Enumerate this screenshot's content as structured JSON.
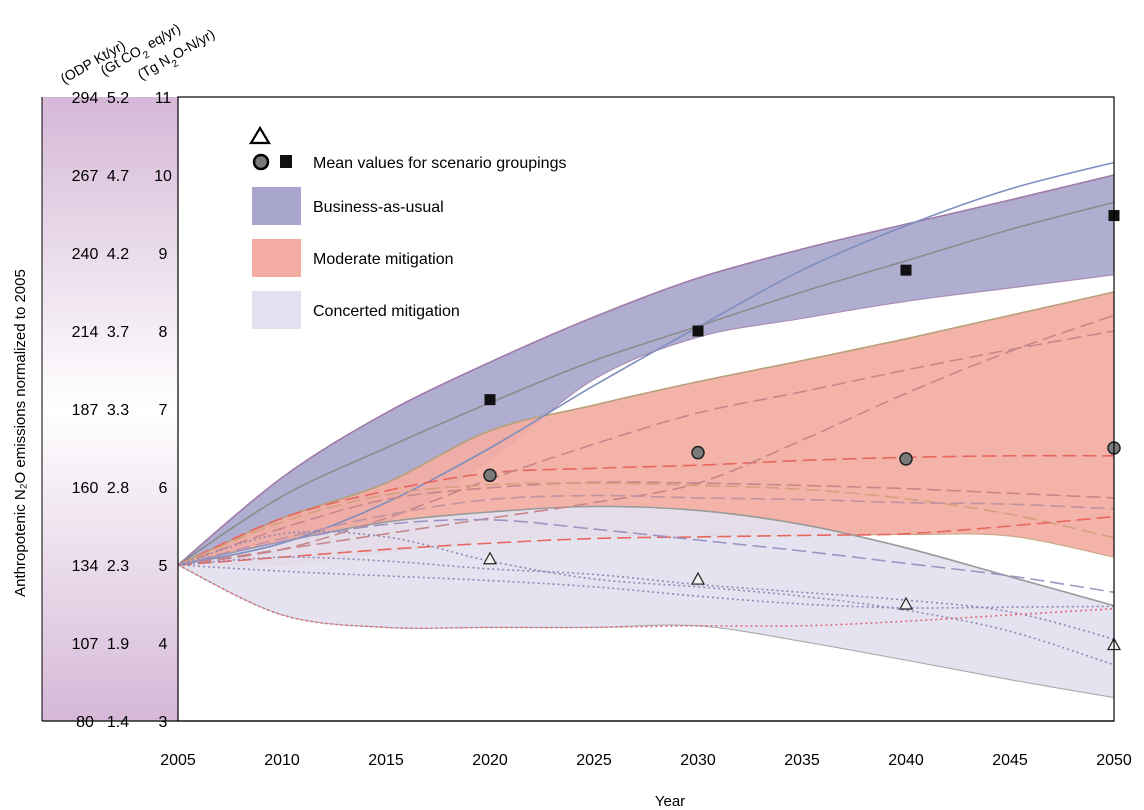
{
  "chart_data": {
    "type": "area",
    "xlabel": "Year",
    "ylabel": "Anthropotenic N₂O emissions normalized to 2005",
    "xlim": [
      2005,
      2050
    ],
    "ylim": [
      3,
      11
    ],
    "x_ticks": [
      "2005",
      "2010",
      "2015",
      "2020",
      "2025",
      "2030",
      "2035",
      "2040",
      "2045",
      "2050"
    ],
    "y_ticks": [
      "3",
      "4",
      "5",
      "6",
      "7",
      "8",
      "9",
      "10",
      "11"
    ],
    "secondary_axes": [
      {
        "unit": "(ODP Kt/yr)",
        "ticks": [
          "80",
          "107",
          "134",
          "160",
          "187",
          "214",
          "240",
          "267",
          "294"
        ]
      },
      {
        "unit_pre": "(Gt CO",
        "unit_sub": "2",
        "unit_post": " eq/yr)",
        "ticks": [
          "1.4",
          "1.9",
          "2.3",
          "2.8",
          "3.3",
          "3.7",
          "4.2",
          "4.7",
          "5.2"
        ]
      },
      {
        "unit_pre": "(Tg N",
        "unit_sub": "2",
        "unit_post": "O-N/yr)",
        "ticks": [
          "3",
          "4",
          "5",
          "6",
          "7",
          "8",
          "9",
          "10",
          "11"
        ]
      }
    ],
    "legend": {
      "placement": "top-left",
      "mean_label": "Mean values for scenario groupings",
      "items": [
        {
          "label": "Business-as-usual",
          "color": "#a8a6cc"
        },
        {
          "label": "Moderate mitigation",
          "color": "#f3aca2"
        },
        {
          "label": "Concerted mitigation",
          "color": "#e3e1ef"
        }
      ]
    },
    "bands": [
      {
        "name": "Business-as-usual",
        "color": "#a8a6cc",
        "edge": "#a07aa8",
        "upper": [
          [
            2005,
            5.0
          ],
          [
            2010,
            6.12
          ],
          [
            2015,
            6.95
          ],
          [
            2020,
            7.6
          ],
          [
            2025,
            8.18
          ],
          [
            2030,
            8.68
          ],
          [
            2035,
            9.05
          ],
          [
            2040,
            9.37
          ],
          [
            2045,
            9.68
          ],
          [
            2050,
            10.0
          ]
        ],
        "lower": [
          [
            2005,
            5.0
          ],
          [
            2010,
            5.18
          ],
          [
            2015,
            5.55
          ],
          [
            2020,
            6.35
          ],
          [
            2025,
            7.38
          ],
          [
            2030,
            7.92
          ],
          [
            2035,
            8.16
          ],
          [
            2040,
            8.38
          ],
          [
            2045,
            8.55
          ],
          [
            2050,
            8.72
          ]
        ]
      },
      {
        "name": "Moderate mitigation",
        "color": "#f3aca2",
        "edge": "#b8a078",
        "upper": [
          [
            2005,
            5.0
          ],
          [
            2010,
            5.6
          ],
          [
            2015,
            6.05
          ],
          [
            2020,
            6.72
          ],
          [
            2025,
            7.05
          ],
          [
            2030,
            7.35
          ],
          [
            2035,
            7.62
          ],
          [
            2040,
            7.9
          ],
          [
            2045,
            8.2
          ],
          [
            2050,
            8.5
          ]
        ],
        "lower": [
          [
            2005,
            5.0
          ],
          [
            2010,
            5.0
          ],
          [
            2015,
            5.16
          ],
          [
            2020,
            5.32
          ],
          [
            2025,
            5.37
          ],
          [
            2030,
            5.38
          ],
          [
            2035,
            5.38
          ],
          [
            2040,
            5.39
          ],
          [
            2045,
            5.37
          ],
          [
            2050,
            5.1
          ]
        ]
      },
      {
        "name": "Concerted mitigation",
        "color": "#e3e1ef",
        "edge": "#9a9a9a",
        "upper": [
          [
            2005,
            5.0
          ],
          [
            2010,
            5.3
          ],
          [
            2015,
            5.55
          ],
          [
            2020,
            5.68
          ],
          [
            2025,
            5.75
          ],
          [
            2030,
            5.7
          ],
          [
            2035,
            5.52
          ],
          [
            2040,
            5.22
          ],
          [
            2045,
            4.85
          ],
          [
            2050,
            4.48
          ]
        ],
        "lower": [
          [
            2005,
            5.0
          ],
          [
            2010,
            4.36
          ],
          [
            2015,
            4.2
          ],
          [
            2020,
            4.2
          ],
          [
            2025,
            4.2
          ],
          [
            2030,
            4.22
          ],
          [
            2035,
            4.02
          ],
          [
            2040,
            3.78
          ],
          [
            2045,
            3.53
          ],
          [
            2050,
            3.3
          ]
        ]
      }
    ],
    "lines": [
      {
        "color": "#8c8c8c",
        "style": "solid",
        "points": [
          [
            2005,
            5.0
          ],
          [
            2010,
            5.88
          ],
          [
            2015,
            6.5
          ],
          [
            2020,
            7.08
          ],
          [
            2025,
            7.62
          ],
          [
            2030,
            8.06
          ],
          [
            2035,
            8.5
          ],
          [
            2040,
            8.9
          ],
          [
            2045,
            9.3
          ],
          [
            2050,
            9.65
          ]
        ]
      },
      {
        "color": "#7f8ec0",
        "style": "solid",
        "points": [
          [
            2005,
            5.0
          ],
          [
            2010,
            5.28
          ],
          [
            2015,
            5.8
          ],
          [
            2020,
            6.5
          ],
          [
            2025,
            7.3
          ],
          [
            2030,
            8.05
          ],
          [
            2035,
            8.78
          ],
          [
            2040,
            9.35
          ],
          [
            2045,
            9.82
          ],
          [
            2050,
            10.16
          ]
        ]
      },
      {
        "color": "#e7665d",
        "style": "dash",
        "points": [
          [
            2005,
            5.0
          ],
          [
            2010,
            5.6
          ],
          [
            2015,
            5.95
          ],
          [
            2020,
            6.18
          ],
          [
            2025,
            6.24
          ],
          [
            2030,
            6.28
          ],
          [
            2035,
            6.34
          ],
          [
            2040,
            6.38
          ],
          [
            2045,
            6.4
          ],
          [
            2050,
            6.4
          ]
        ]
      },
      {
        "color": "#c7868a",
        "style": "dash",
        "points": [
          [
            2005,
            5.0
          ],
          [
            2010,
            5.2
          ],
          [
            2015,
            5.6
          ],
          [
            2020,
            6.1
          ],
          [
            2025,
            6.55
          ],
          [
            2030,
            6.95
          ],
          [
            2035,
            7.22
          ],
          [
            2040,
            7.5
          ],
          [
            2045,
            7.76
          ],
          [
            2050,
            8.0
          ]
        ]
      },
      {
        "color": "#c7868a",
        "style": "dash",
        "points": [
          [
            2005,
            5.0
          ],
          [
            2010,
            5.2
          ],
          [
            2015,
            5.4
          ],
          [
            2020,
            5.6
          ],
          [
            2025,
            5.8
          ],
          [
            2030,
            6.05
          ],
          [
            2035,
            6.6
          ],
          [
            2040,
            7.2
          ],
          [
            2045,
            7.74
          ],
          [
            2050,
            8.2
          ]
        ]
      },
      {
        "color": "#c7868a",
        "style": "dash",
        "points": [
          [
            2005,
            5.0
          ],
          [
            2010,
            5.47
          ],
          [
            2015,
            5.84
          ],
          [
            2020,
            5.99
          ],
          [
            2025,
            6.06
          ],
          [
            2030,
            6.05
          ],
          [
            2035,
            6.02
          ],
          [
            2040,
            5.98
          ],
          [
            2045,
            5.92
          ],
          [
            2050,
            5.86
          ]
        ]
      },
      {
        "color": "#d4a07d",
        "style": "dash",
        "points": [
          [
            2005,
            5.0
          ],
          [
            2010,
            5.55
          ],
          [
            2015,
            5.9
          ],
          [
            2020,
            6.03
          ],
          [
            2025,
            6.05
          ],
          [
            2030,
            6.02
          ],
          [
            2035,
            5.97
          ],
          [
            2040,
            5.85
          ],
          [
            2045,
            5.65
          ],
          [
            2050,
            5.35
          ]
        ]
      },
      {
        "color": "#e7665d",
        "style": "dash",
        "points": [
          [
            2005,
            5.0
          ],
          [
            2010,
            5.1
          ],
          [
            2015,
            5.2
          ],
          [
            2020,
            5.28
          ],
          [
            2025,
            5.34
          ],
          [
            2030,
            5.36
          ],
          [
            2035,
            5.38
          ],
          [
            2040,
            5.4
          ],
          [
            2045,
            5.5
          ],
          [
            2050,
            5.62
          ]
        ]
      },
      {
        "color": "#bf93a2",
        "style": "dash",
        "points": [
          [
            2005,
            5.0
          ],
          [
            2010,
            5.34
          ],
          [
            2015,
            5.64
          ],
          [
            2020,
            5.84
          ],
          [
            2025,
            5.89
          ],
          [
            2030,
            5.86
          ],
          [
            2035,
            5.84
          ],
          [
            2040,
            5.8
          ],
          [
            2045,
            5.78
          ],
          [
            2050,
            5.72
          ]
        ]
      },
      {
        "color": "#9d94c4",
        "style": "dash",
        "points": [
          [
            2005,
            5.0
          ],
          [
            2010,
            5.3
          ],
          [
            2015,
            5.52
          ],
          [
            2020,
            5.58
          ],
          [
            2025,
            5.46
          ],
          [
            2030,
            5.32
          ],
          [
            2035,
            5.18
          ],
          [
            2040,
            5.02
          ],
          [
            2045,
            4.86
          ],
          [
            2050,
            4.65
          ]
        ]
      },
      {
        "color": "#8e88b8",
        "style": "dot",
        "points": [
          [
            2005,
            5.0
          ],
          [
            2010,
            5.1
          ],
          [
            2015,
            5.05
          ],
          [
            2020,
            4.95
          ],
          [
            2025,
            4.88
          ],
          [
            2030,
            4.75
          ],
          [
            2035,
            4.65
          ],
          [
            2040,
            4.55
          ],
          [
            2045,
            4.4
          ],
          [
            2050,
            4.05
          ]
        ]
      },
      {
        "color": "#8e88b8",
        "style": "dot",
        "points": [
          [
            2005,
            5.0
          ],
          [
            2010,
            5.4
          ],
          [
            2015,
            5.36
          ],
          [
            2020,
            5.05
          ],
          [
            2025,
            4.82
          ],
          [
            2030,
            4.72
          ],
          [
            2035,
            4.6
          ],
          [
            2040,
            4.42
          ],
          [
            2045,
            4.15
          ],
          [
            2050,
            3.72
          ]
        ]
      },
      {
        "color": "#8e88b8",
        "style": "dot",
        "points": [
          [
            2005,
            5.0
          ],
          [
            2010,
            4.92
          ],
          [
            2015,
            4.86
          ],
          [
            2020,
            4.8
          ],
          [
            2025,
            4.72
          ],
          [
            2030,
            4.6
          ],
          [
            2035,
            4.5
          ],
          [
            2040,
            4.45
          ],
          [
            2045,
            4.46
          ],
          [
            2050,
            4.47
          ]
        ]
      },
      {
        "color": "#e06a7e",
        "style": "dot",
        "points": [
          [
            2005,
            5.0
          ],
          [
            2010,
            4.36
          ],
          [
            2015,
            4.2
          ],
          [
            2020,
            4.2
          ],
          [
            2025,
            4.2
          ],
          [
            2030,
            4.22
          ],
          [
            2035,
            4.22
          ],
          [
            2040,
            4.28
          ],
          [
            2045,
            4.36
          ],
          [
            2050,
            4.44
          ]
        ]
      }
    ],
    "means": [
      {
        "marker": "square",
        "points": [
          [
            2020,
            7.12
          ],
          [
            2030,
            8.0
          ],
          [
            2040,
            8.78
          ],
          [
            2050,
            9.48
          ]
        ]
      },
      {
        "marker": "circle",
        "points": [
          [
            2020,
            6.15
          ],
          [
            2030,
            6.44
          ],
          [
            2040,
            6.36
          ],
          [
            2050,
            6.5
          ]
        ]
      },
      {
        "marker": "triangle",
        "points": [
          [
            2020,
            5.08
          ],
          [
            2030,
            4.82
          ],
          [
            2040,
            4.5
          ],
          [
            2050,
            3.98
          ]
        ]
      }
    ]
  }
}
